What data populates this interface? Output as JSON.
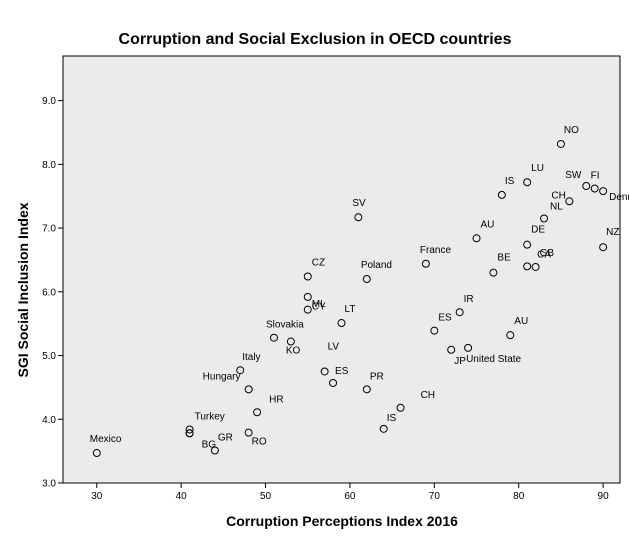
{
  "chart_data": {
    "type": "scatter",
    "title": "Corruption and Social Exclusion in OECD countries",
    "xlabel": "Corruption Perceptions Index  2016",
    "ylabel": "SGI Social Inclusion Index",
    "xlim": [
      26,
      92
    ],
    "ylim": [
      3.0,
      9.7
    ],
    "xticks": [
      30,
      40,
      50,
      60,
      70,
      80,
      90
    ],
    "yticks": [
      3.0,
      4.0,
      5.0,
      6.0,
      7.0,
      8.0,
      9.0
    ],
    "tick_labels_x": [
      "30",
      "40",
      "50",
      "60",
      "70",
      "80",
      "90"
    ],
    "tick_labels_y": [
      "3.0",
      "4.0",
      "5.0",
      "6.0",
      "7.0",
      "8.0",
      "9.0"
    ],
    "grid": false,
    "background": "#ebebeb",
    "points": [
      {
        "label": "Mexico",
        "x": 30,
        "y": 3.47
      },
      {
        "label": "Turkey",
        "x": 41,
        "y": 3.84
      },
      {
        "label": "",
        "x": 41,
        "y": 3.78
      },
      {
        "label": "BG",
        "x": 41,
        "y": 3.78
      },
      {
        "label": "GR",
        "x": 44,
        "y": 3.51
      },
      {
        "label": "RO",
        "x": 48,
        "y": 3.79
      },
      {
        "label": "Hungary",
        "x": 48,
        "y": 4.47
      },
      {
        "label": "HR",
        "x": 49,
        "y": 4.11
      },
      {
        "label": "Italy",
        "x": 47,
        "y": 4.77
      },
      {
        "label": "Slovakia",
        "x": 51,
        "y": 5.28
      },
      {
        "label": "KO",
        "x": 53,
        "y": 5.22
      },
      {
        "label": "LV",
        "x": 57,
        "y": 4.75
      },
      {
        "label": "ES",
        "x": 58,
        "y": 4.57
      },
      {
        "label": "CZ",
        "x": 55,
        "y": 6.24
      },
      {
        "label": "ML",
        "x": 55,
        "y": 5.92
      },
      {
        "label": "CY",
        "x": 55,
        "y": 5.72
      },
      {
        "label": "LT",
        "x": 59,
        "y": 5.51
      },
      {
        "label": "SV",
        "x": 61,
        "y": 7.17
      },
      {
        "label": "Poland",
        "x": 62,
        "y": 6.2
      },
      {
        "label": "PR",
        "x": 62,
        "y": 4.47
      },
      {
        "label": "CH",
        "x": 66,
        "y": 4.18
      },
      {
        "label": "IS",
        "x": 64,
        "y": 3.85
      },
      {
        "label": "France",
        "x": 69,
        "y": 6.44
      },
      {
        "label": "ES",
        "x": 70,
        "y": 5.39
      },
      {
        "label": "IR",
        "x": 73,
        "y": 5.68
      },
      {
        "label": "JP",
        "x": 72,
        "y": 5.09
      },
      {
        "label": "United State",
        "x": 74,
        "y": 5.12
      },
      {
        "label": "AU",
        "x": 75,
        "y": 6.84
      },
      {
        "label": "BE",
        "x": 77,
        "y": 6.3
      },
      {
        "label": "AU",
        "x": 79,
        "y": 5.32
      },
      {
        "label": "IS",
        "x": 78,
        "y": 7.52
      },
      {
        "label": "LU",
        "x": 81,
        "y": 7.72
      },
      {
        "label": "DE",
        "x": 81,
        "y": 6.74
      },
      {
        "label": "CA",
        "x": 81,
        "y": 6.4
      },
      {
        "label": "GB",
        "x": 82,
        "y": 6.39
      },
      {
        "label": "NL",
        "x": 83,
        "y": 7.15
      },
      {
        "label": "NO",
        "x": 85,
        "y": 8.32
      },
      {
        "label": "CH",
        "x": 86,
        "y": 7.42
      },
      {
        "label": "SW",
        "x": 88,
        "y": 7.66
      },
      {
        "label": "FI",
        "x": 89,
        "y": 7.62
      },
      {
        "label": "Denmark",
        "x": 90,
        "y": 7.58
      },
      {
        "label": "NZ",
        "x": 90,
        "y": 6.7
      }
    ]
  }
}
